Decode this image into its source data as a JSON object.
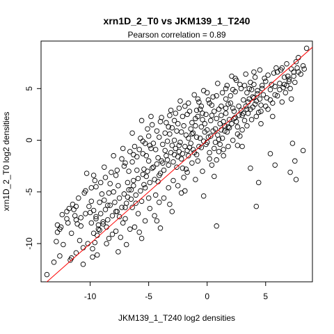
{
  "chart_data": {
    "type": "scatter",
    "title": "xrn1D_2_T0 vs JKM139_1_T240",
    "subtitle": "Pearson correlation =  0.89",
    "xlabel": "JKM139_1_T240 log2 densities",
    "ylabel": "xrn1D_2_T0 log2 densities",
    "xlim": [
      -14.2,
      9.0
    ],
    "ylim": [
      -13.7,
      9.6
    ],
    "x_ticks": [
      -10,
      -5,
      0,
      5
    ],
    "y_ticks": [
      -10,
      -5,
      0,
      5
    ],
    "tick_labels_x": [
      "-10",
      "-5",
      "0",
      "5"
    ],
    "tick_labels_y": [
      "-10",
      "-5",
      "0",
      "5"
    ],
    "reference_line": {
      "intercept": 0,
      "slope": 1,
      "color": "#ff0000"
    },
    "point_color": "#000000",
    "grid": false,
    "legend": "none",
    "points": [
      [
        -13.7,
        -13.0
      ],
      [
        -13.1,
        -11.8
      ],
      [
        -12.6,
        -11.2
      ],
      [
        -12.9,
        -9.8
      ],
      [
        -12.3,
        -10.1
      ],
      [
        -11.7,
        -11.6
      ],
      [
        -11.6,
        -11.4
      ],
      [
        -11.2,
        -10.9
      ],
      [
        -12.6,
        -8.6
      ],
      [
        -12.5,
        -8.4
      ],
      [
        -12.4,
        -7.2
      ],
      [
        -11.8,
        -6.6
      ],
      [
        -11.5,
        -6.2
      ],
      [
        -11.3,
        -7.3
      ],
      [
        -11.1,
        -8.1
      ],
      [
        -10.9,
        -9.7
      ],
      [
        -10.6,
        -10.4
      ],
      [
        -10.2,
        -10.0
      ],
      [
        -9.8,
        -10.5
      ],
      [
        -9.6,
        -9.9
      ],
      [
        -9.4,
        -9.2
      ],
      [
        -9.2,
        -8.7
      ],
      [
        -11.9,
        -8.0
      ],
      [
        -11.2,
        -7.7
      ],
      [
        -10.8,
        -7.5
      ],
      [
        -10.4,
        -7.1
      ],
      [
        -10.1,
        -6.4
      ],
      [
        -9.9,
        -5.9
      ],
      [
        -9.7,
        -6.8
      ],
      [
        -9.5,
        -7.4
      ],
      [
        -9.3,
        -8.2
      ],
      [
        -8.9,
        -7.9
      ],
      [
        -8.6,
        -8.4
      ],
      [
        -8.4,
        -9.5
      ],
      [
        -8.1,
        -9.1
      ],
      [
        -7.6,
        -10.8
      ],
      [
        -10.3,
        -3.2
      ],
      [
        -9.7,
        -3.4
      ],
      [
        -9.5,
        -4.5
      ],
      [
        -9.0,
        -5.2
      ],
      [
        -8.8,
        -5.8
      ],
      [
        -8.5,
        -6.3
      ],
      [
        -8.3,
        -4.2
      ],
      [
        -8.0,
        -5.0
      ],
      [
        -7.8,
        -6.9
      ],
      [
        -7.5,
        -7.4
      ],
      [
        -7.2,
        -8.0
      ],
      [
        -7.0,
        -6.5
      ],
      [
        -6.8,
        -5.5
      ],
      [
        -6.5,
        -4.8
      ],
      [
        -6.3,
        -3.9
      ],
      [
        -6.1,
        -6.1
      ],
      [
        -5.9,
        -7.1
      ],
      [
        -5.6,
        -5.9
      ],
      [
        -5.4,
        -4.3
      ],
      [
        -5.2,
        -3.5
      ],
      [
        -7.1,
        -2.5
      ],
      [
        -6.7,
        -3.0
      ],
      [
        -6.4,
        -2.1
      ],
      [
        -6.0,
        -1.6
      ],
      [
        -5.8,
        -0.9
      ],
      [
        -5.5,
        -1.3
      ],
      [
        -5.3,
        -0.3
      ],
      [
        -5.0,
        0.4
      ],
      [
        -4.8,
        -0.8
      ],
      [
        -4.6,
        -2.6
      ],
      [
        -4.4,
        -5.3
      ],
      [
        -4.2,
        -4.0
      ],
      [
        -4.0,
        -3.2
      ],
      [
        -3.8,
        -2.2
      ],
      [
        -3.6,
        -1.0
      ],
      [
        -3.4,
        -0.1
      ],
      [
        -3.2,
        0.6
      ],
      [
        -3.0,
        1.2
      ],
      [
        -2.8,
        1.9
      ],
      [
        -2.6,
        0.9
      ],
      [
        -2.4,
        -0.5
      ],
      [
        -2.2,
        -1.8
      ],
      [
        -2.0,
        -3.6
      ],
      [
        -1.8,
        -2.8
      ],
      [
        -1.6,
        -1.5
      ],
      [
        -1.4,
        -0.3
      ],
      [
        -1.2,
        0.7
      ],
      [
        -1.0,
        1.4
      ],
      [
        -0.8,
        2.3
      ],
      [
        -0.6,
        3.0
      ],
      [
        -0.4,
        2.0
      ],
      [
        -0.2,
        0.8
      ],
      [
        0.0,
        -0.2
      ],
      [
        0.2,
        -1.2
      ],
      [
        0.4,
        -2.4
      ],
      [
        0.6,
        -3.5
      ],
      [
        0.8,
        -1.9
      ],
      [
        1.0,
        0.1
      ],
      [
        1.2,
        1.0
      ],
      [
        1.4,
        1.8
      ],
      [
        1.6,
        2.6
      ],
      [
        1.8,
        3.5
      ],
      [
        2.0,
        4.3
      ],
      [
        2.2,
        3.1
      ],
      [
        2.4,
        2.2
      ],
      [
        2.6,
        1.3
      ],
      [
        2.8,
        0.4
      ],
      [
        3.0,
        -0.6
      ],
      [
        3.2,
        1.9
      ],
      [
        3.4,
        3.0
      ],
      [
        3.6,
        4.0
      ],
      [
        3.8,
        4.9
      ],
      [
        4.0,
        5.4
      ],
      [
        4.2,
        3.8
      ],
      [
        4.4,
        2.7
      ],
      [
        4.6,
        1.6
      ],
      [
        4.8,
        4.4
      ],
      [
        5.0,
        5.7
      ],
      [
        5.2,
        6.3
      ],
      [
        5.4,
        4.9
      ],
      [
        5.6,
        3.6
      ],
      [
        5.8,
        5.2
      ],
      [
        6.0,
        6.6
      ],
      [
        6.2,
        5.5
      ],
      [
        6.4,
        7.0
      ],
      [
        6.6,
        6.1
      ],
      [
        6.8,
        7.4
      ],
      [
        7.0,
        5.9
      ],
      [
        7.2,
        6.9
      ],
      [
        7.6,
        7.6
      ],
      [
        8.0,
        6.4
      ],
      [
        7.8,
        8.0
      ],
      [
        7.4,
        6.6
      ],
      [
        6.9,
        6.2
      ],
      [
        6.5,
        5.1
      ],
      [
        8.5,
        8.9
      ],
      [
        7.7,
        7.0
      ],
      [
        8.3,
        6.9
      ],
      [
        5.9,
        7.0
      ],
      [
        5.7,
        6.5
      ],
      [
        4.9,
        6.0
      ],
      [
        4.5,
        6.8
      ],
      [
        4.1,
        6.1
      ],
      [
        3.7,
        5.6
      ],
      [
        3.3,
        6.4
      ],
      [
        2.9,
        5.0
      ],
      [
        2.5,
        5.8
      ],
      [
        2.1,
        6.2
      ],
      [
        1.7,
        5.3
      ],
      [
        1.3,
        4.6
      ],
      [
        0.9,
        5.5
      ],
      [
        0.5,
        4.2
      ],
      [
        0.1,
        3.9
      ],
      [
        -0.3,
        4.8
      ],
      [
        -0.7,
        3.7
      ],
      [
        -1.1,
        4.4
      ],
      [
        -1.5,
        2.8
      ],
      [
        -1.9,
        3.3
      ],
      [
        -2.3,
        3.8
      ],
      [
        -2.7,
        2.6
      ],
      [
        -3.1,
        2.9
      ],
      [
        -3.5,
        1.7
      ],
      [
        -3.9,
        2.2
      ],
      [
        -4.3,
        0.9
      ],
      [
        -4.7,
        1.5
      ],
      [
        -5.1,
        1.1
      ],
      [
        -5.7,
        0.2
      ],
      [
        -6.2,
        -0.6
      ],
      [
        -6.6,
        -1.1
      ],
      [
        -7.3,
        -1.8
      ],
      [
        -7.7,
        -2.9
      ],
      [
        -8.2,
        -3.1
      ],
      [
        -8.7,
        -3.6
      ],
      [
        -9.1,
        -4.1
      ],
      [
        -9.9,
        -4.6
      ],
      [
        -10.5,
        -5.1
      ],
      [
        -11.0,
        -5.6
      ],
      [
        -11.4,
        -6.7
      ],
      [
        -12.0,
        -7.6
      ],
      [
        -12.8,
        -8.9
      ],
      [
        -7.4,
        -9.4
      ],
      [
        -6.9,
        -10.1
      ],
      [
        -6.6,
        -8.6
      ],
      [
        -5.8,
        -8.9
      ],
      [
        -5.3,
        -7.8
      ],
      [
        -4.9,
        -6.6
      ],
      [
        -4.5,
        -7.3
      ],
      [
        -4.1,
        -6.0
      ],
      [
        -3.7,
        -5.6
      ],
      [
        -3.3,
        -4.6
      ],
      [
        -2.9,
        -3.9
      ],
      [
        -2.5,
        -4.4
      ],
      [
        -2.1,
        -2.7
      ],
      [
        -1.7,
        -3.1
      ],
      [
        -1.3,
        -2.2
      ],
      [
        -0.9,
        -1.4
      ],
      [
        -0.5,
        -0.7
      ],
      [
        0.3,
        0.4
      ],
      [
        0.7,
        1.1
      ],
      [
        1.1,
        1.6
      ],
      [
        1.5,
        0.9
      ],
      [
        1.9,
        2.0
      ],
      [
        2.3,
        2.8
      ],
      [
        2.7,
        3.3
      ],
      [
        3.1,
        3.9
      ],
      [
        3.5,
        2.6
      ],
      [
        3.9,
        3.2
      ],
      [
        4.3,
        4.5
      ],
      [
        4.7,
        5.0
      ],
      [
        5.1,
        4.1
      ],
      [
        5.5,
        5.4
      ],
      [
        6.3,
        6.8
      ],
      [
        6.7,
        4.6
      ],
      [
        7.1,
        5.0
      ],
      [
        7.5,
        5.6
      ],
      [
        0.8,
        -8.3
      ],
      [
        4.2,
        -6.4
      ],
      [
        5.8,
        -2.4
      ],
      [
        5.4,
        -1.3
      ],
      [
        7.1,
        -3.1
      ],
      [
        7.5,
        -2.0
      ],
      [
        7.6,
        -3.8
      ],
      [
        8.2,
        -1.0
      ],
      [
        7.3,
        -0.3
      ],
      [
        4.4,
        -4.1
      ],
      [
        3.7,
        -2.7
      ],
      [
        -0.3,
        -5.4
      ],
      [
        -1.9,
        -4.9
      ],
      [
        -3.2,
        -6.2
      ],
      [
        -4.3,
        -7.8
      ],
      [
        -5.6,
        -9.5
      ],
      [
        -6.2,
        -8.4
      ],
      [
        -9.8,
        -11.3
      ],
      [
        -10.6,
        -12.0
      ],
      [
        -0.6,
        0.2
      ],
      [
        -0.2,
        1.6
      ],
      [
        0.4,
        2.4
      ],
      [
        -1.2,
        -0.9
      ],
      [
        -1.8,
        0.5
      ],
      [
        -2.4,
        -1.1
      ],
      [
        -2.6,
        -2.6
      ],
      [
        -3.0,
        -0.5
      ],
      [
        -3.4,
        -1.9
      ],
      [
        -3.8,
        -0.4
      ],
      [
        -4.2,
        -1.7
      ],
      [
        -4.6,
        -0.3
      ],
      [
        -5.0,
        -2.0
      ],
      [
        -5.4,
        -2.8
      ],
      [
        -0.8,
        -2.0
      ],
      [
        0.0,
        1.0
      ],
      [
        0.6,
        2.8
      ],
      [
        1.2,
        3.3
      ],
      [
        1.8,
        1.3
      ],
      [
        2.4,
        4.7
      ],
      [
        3.0,
        2.4
      ],
      [
        3.6,
        5.0
      ],
      [
        -1.4,
        1.1
      ],
      [
        -2.0,
        1.4
      ],
      [
        -2.8,
        0.0
      ],
      [
        -3.6,
        0.7
      ],
      [
        -4.4,
        -0.9
      ],
      [
        -5.2,
        -1.5
      ],
      [
        -6.0,
        -2.9
      ],
      [
        -6.8,
        -4.1
      ],
      [
        -7.6,
        -4.4
      ],
      [
        -8.4,
        -5.1
      ],
      [
        -9.2,
        -6.0
      ],
      [
        -10.0,
        -7.0
      ],
      [
        -10.8,
        -8.3
      ],
      [
        -11.6,
        -9.0
      ],
      [
        2.6,
        -0.5
      ],
      [
        1.4,
        -0.9
      ],
      [
        0.2,
        -1.8
      ],
      [
        -0.4,
        -3.0
      ],
      [
        -1.0,
        -3.8
      ],
      [
        -2.2,
        -5.1
      ],
      [
        -3.0,
        -6.9
      ],
      [
        -4.0,
        -8.5
      ],
      [
        -5.0,
        -5.6
      ],
      [
        -6.4,
        -6.5
      ],
      [
        -7.0,
        -7.6
      ],
      [
        -7.8,
        -8.8
      ],
      [
        -8.6,
        -10.0
      ],
      [
        -9.4,
        -11.1
      ],
      [
        1.0,
        3.0
      ],
      [
        0.4,
        3.4
      ],
      [
        -0.4,
        2.6
      ],
      [
        -1.0,
        2.1
      ],
      [
        -1.6,
        0.2
      ],
      [
        -2.2,
        0.8
      ],
      [
        -2.8,
        -1.4
      ],
      [
        1.6,
        4.0
      ],
      [
        2.2,
        4.9
      ],
      [
        2.8,
        5.4
      ],
      [
        3.4,
        4.6
      ],
      [
        4.0,
        4.1
      ],
      [
        4.6,
        3.4
      ],
      [
        5.2,
        3.0
      ],
      [
        5.6,
        2.3
      ],
      [
        6.0,
        4.3
      ],
      [
        6.4,
        3.7
      ],
      [
        6.8,
        5.3
      ],
      [
        7.2,
        4.0
      ],
      [
        -0.1,
        -0.4
      ],
      [
        0.1,
        0.3
      ],
      [
        -0.3,
        -0.1
      ],
      [
        0.5,
        0.9
      ],
      [
        -0.7,
        -0.6
      ],
      [
        0.7,
        -0.2
      ],
      [
        -0.9,
        0.3
      ],
      [
        0.9,
        0.5
      ],
      [
        -1.1,
        -1.2
      ],
      [
        1.1,
        -0.4
      ],
      [
        -1.3,
        0.6
      ],
      [
        1.3,
        0.2
      ],
      [
        -1.5,
        -0.7
      ],
      [
        1.5,
        1.4
      ],
      [
        -1.7,
        -1.0
      ],
      [
        1.7,
        0.8
      ],
      [
        -1.9,
        -0.6
      ],
      [
        1.9,
        1.2
      ],
      [
        -2.1,
        -1.3
      ],
      [
        2.1,
        1.6
      ],
      [
        -2.3,
        -0.2
      ],
      [
        2.3,
        2.1
      ],
      [
        -2.5,
        -1.6
      ],
      [
        2.5,
        1.8
      ],
      [
        -2.7,
        -0.8
      ],
      [
        2.7,
        2.4
      ],
      [
        -2.9,
        -2.1
      ],
      [
        2.9,
        2.9
      ],
      [
        -3.1,
        -1.2
      ],
      [
        3.1,
        2.6
      ],
      [
        -3.3,
        -2.4
      ],
      [
        3.3,
        3.3
      ],
      [
        -3.5,
        -1.5
      ],
      [
        3.5,
        3.7
      ],
      [
        -3.7,
        -2.9
      ],
      [
        3.7,
        3.0
      ],
      [
        -3.9,
        -2.0
      ],
      [
        3.9,
        4.2
      ],
      [
        -4.1,
        -3.4
      ],
      [
        4.1,
        3.5
      ],
      [
        -4.3,
        -2.3
      ],
      [
        4.3,
        4.8
      ],
      [
        -4.5,
        -3.8
      ],
      [
        4.5,
        4.0
      ],
      [
        -4.7,
        -2.7
      ],
      [
        4.7,
        5.3
      ],
      [
        -4.9,
        -4.1
      ],
      [
        -5.1,
        -3.0
      ],
      [
        -5.3,
        -4.6
      ],
      [
        -5.5,
        -3.3
      ],
      [
        -5.7,
        -4.9
      ],
      [
        -5.9,
        -3.7
      ],
      [
        -6.1,
        -5.3
      ],
      [
        -6.3,
        -4.4
      ],
      [
        -6.5,
        -5.7
      ],
      [
        -6.7,
        -4.8
      ],
      [
        -6.9,
        -6.1
      ],
      [
        -7.1,
        -5.2
      ],
      [
        -7.3,
        -6.5
      ],
      [
        -7.5,
        -5.6
      ],
      [
        -7.7,
        -6.9
      ],
      [
        -7.9,
        -6.0
      ],
      [
        -8.1,
        -7.3
      ],
      [
        -8.3,
        -6.3
      ],
      [
        -8.5,
        -7.7
      ],
      [
        -8.7,
        -6.7
      ],
      [
        -8.9,
        -8.1
      ],
      [
        -9.1,
        -7.1
      ],
      [
        -9.3,
        -8.6
      ],
      [
        -9.5,
        -7.6
      ],
      [
        -9.7,
        -9.0
      ],
      [
        -9.9,
        -8.0
      ],
      [
        -0.5,
        1.3
      ],
      [
        0.3,
        1.9
      ],
      [
        -1.3,
        1.7
      ],
      [
        -0.1,
        2.5
      ],
      [
        0.8,
        2.1
      ],
      [
        -0.9,
        2.9
      ],
      [
        1.2,
        2.4
      ],
      [
        -2.1,
        2.3
      ],
      [
        -0.5,
        3.3
      ],
      [
        1.6,
        3.1
      ],
      [
        -1.7,
        2.5
      ],
      [
        0.2,
        3.6
      ],
      [
        2.0,
        3.6
      ],
      [
        -2.5,
        1.6
      ],
      [
        -3.3,
        1.3
      ],
      [
        -4.1,
        0.3
      ],
      [
        -4.9,
        -0.5
      ],
      [
        -5.5,
        -0.1
      ],
      [
        -6.3,
        -1.4
      ],
      [
        -7.0,
        -2.2
      ],
      [
        -7.8,
        -3.4
      ],
      [
        0.6,
        -0.8
      ],
      [
        1.0,
        -1.1
      ],
      [
        1.4,
        -1.5
      ],
      [
        1.8,
        -0.6
      ],
      [
        2.2,
        0.0
      ],
      [
        2.6,
        0.6
      ],
      [
        3.0,
        1.0
      ],
      [
        3.4,
        1.4
      ],
      [
        3.8,
        2.0
      ],
      [
        4.2,
        2.3
      ],
      [
        4.6,
        2.8
      ],
      [
        5.0,
        3.3
      ],
      [
        5.4,
        3.9
      ],
      [
        5.8,
        4.4
      ],
      [
        6.2,
        4.9
      ],
      [
        6.6,
        5.4
      ],
      [
        7.0,
        5.7
      ],
      [
        7.4,
        6.2
      ],
      [
        7.8,
        6.6
      ],
      [
        8.2,
        7.2
      ],
      [
        4.0,
        6.6
      ],
      [
        3.2,
        5.3
      ],
      [
        2.4,
        6.0
      ],
      [
        1.6,
        5.0
      ],
      [
        0.8,
        4.3
      ],
      [
        0.0,
        4.6
      ],
      [
        -0.8,
        4.0
      ],
      [
        -1.6,
        3.6
      ],
      [
        -2.4,
        3.1
      ],
      [
        -3.2,
        2.4
      ],
      [
        -4.0,
        1.8
      ],
      [
        -4.8,
        2.3
      ],
      [
        -5.6,
        1.9
      ],
      [
        -6.4,
        0.7
      ],
      [
        -7.2,
        -0.8
      ],
      [
        -8.0,
        -1.5
      ],
      [
        -8.8,
        -2.6
      ],
      [
        -9.6,
        -3.9
      ],
      [
        -10.4,
        -4.9
      ],
      [
        -11.2,
        -6.4
      ],
      [
        -12.0,
        -6.9
      ],
      [
        -12.8,
        -8.2
      ]
    ]
  }
}
